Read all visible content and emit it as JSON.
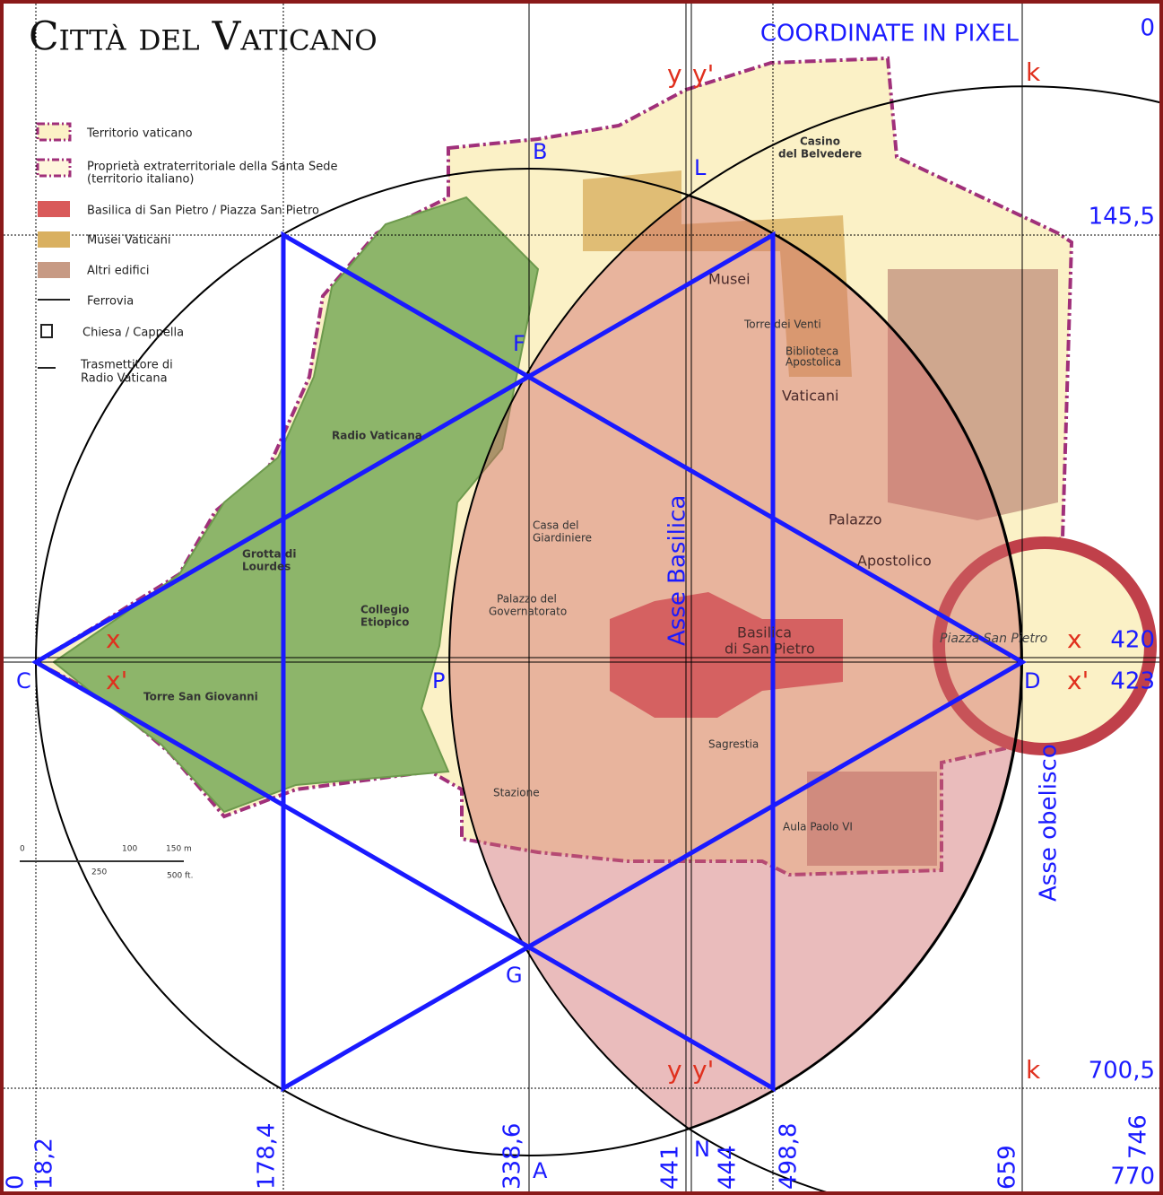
{
  "title": "Città del Vaticano",
  "heading": "COORDINATE IN PIXEL",
  "x_coordinates": [
    "0",
    "18,2",
    "178,4",
    "338,6",
    "441",
    "444",
    "498,8",
    "659",
    "746",
    "770"
  ],
  "y_coordinates": [
    "0",
    "145,5",
    "420",
    "423",
    "700,5"
  ],
  "points": [
    "B",
    "L",
    "F",
    "C",
    "P",
    "D",
    "G",
    "A",
    "N"
  ],
  "axis_letters": [
    "x",
    "x'",
    "y",
    "y'",
    "k"
  ],
  "axis_names": [
    "Asse Basilica",
    "Asse obelisco"
  ],
  "legend": [
    "Territorio vaticano",
    "Proprietà extraterritoriale della Santa Sede",
    "(territorio italiano)",
    "Basilica di San Pietro / Piazza San Pietro",
    "Musei Vaticani",
    "Altri edifici",
    "Ferrovia",
    "Chiesa / Cappella",
    "Trasmettitore di",
    "Radio Vaticana"
  ],
  "scale": [
    "0",
    "100",
    "150 m",
    "250",
    "500 ft."
  ],
  "map_labels": [
    "Musei",
    "Vaticani",
    "Palazzo",
    "Apostolico",
    "Basilica",
    "di San Pietro",
    "Piazza San Pietro",
    "Collegio",
    "Etiopico",
    "Radio Vaticana",
    "Torre San Giovanni",
    "Aula Paolo VI",
    "Sagrestia",
    "Casa del",
    "Giardiniere",
    "Palazzo del",
    "Governatorato",
    "Casino",
    "del Belvedere",
    "Grotta di",
    "Lourdes",
    "Stazione",
    "Torre dei Venti",
    "Biblioteca",
    "Apostolica"
  ]
}
